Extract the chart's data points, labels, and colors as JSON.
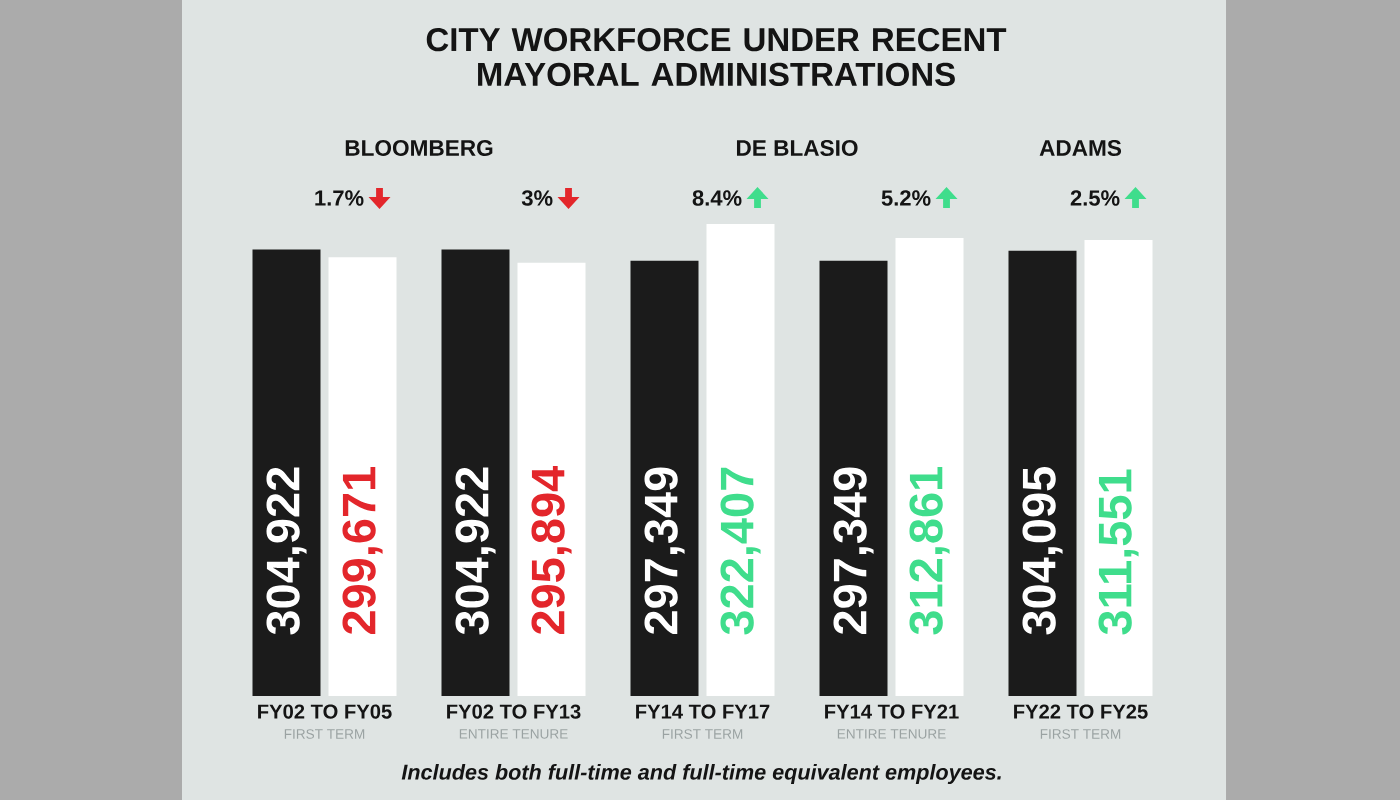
{
  "chart_data": {
    "type": "bar",
    "title": "CITY WORKFORCE UNDER RECENT MAYORAL ADMINISTRATIONS",
    "categories": [
      "FY02 TO FY05",
      "FY02 TO FY13",
      "FY14 TO FY17",
      "FY14 TO FY21",
      "FY22 TO FY25"
    ],
    "series": [
      {
        "color": "#1b1b1b",
        "values": [
          304922,
          304922,
          297349,
          297349,
          304095
        ],
        "value_labels": [
          "304,922",
          "304,922",
          "297,349",
          "297,349",
          "304,095"
        ]
      },
      {
        "color": "#ffffff",
        "values": [
          299671,
          295894,
          322407,
          312861,
          311551
        ],
        "value_labels": [
          "299,671",
          "295,894",
          "322,407",
          "312,861",
          "311,551"
        ]
      }
    ],
    "tick_labels": "x",
    "annotations": [
      "BLOOMBERG",
      "DE BLASIO",
      "ADAMS",
      "1.7%",
      "3%",
      "8.4%",
      "5.2%",
      "2.5%",
      "FIRST TERM",
      "ENTIRE TENURE",
      "FIRST TERM",
      "ENTIRE TENURE",
      "FIRST TERM",
      "Includes both full-time and full-time equivalent employees."
    ]
  }
}
